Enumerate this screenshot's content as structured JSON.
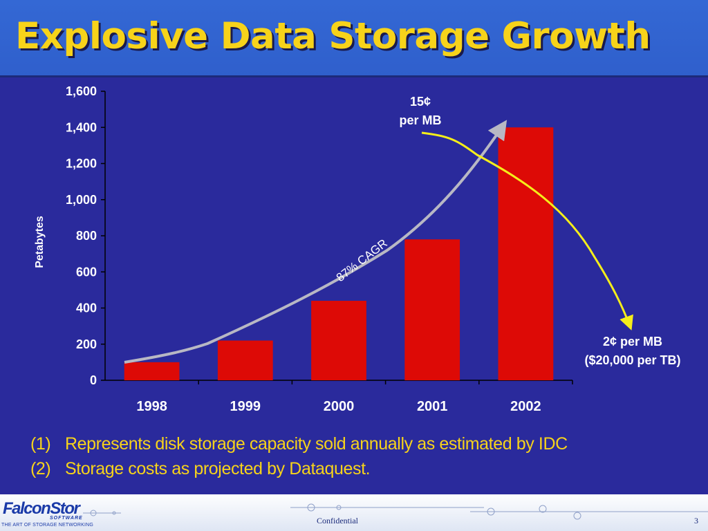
{
  "title": "Explosive Data Storage Growth",
  "chart_data": {
    "type": "bar",
    "categories": [
      "1998",
      "1999",
      "2000",
      "2001",
      "2002"
    ],
    "values": [
      100,
      220,
      440,
      780,
      1400
    ],
    "ylabel": "Petabytes",
    "xlabel": "",
    "ylim": [
      0,
      1600
    ],
    "yticks": [
      0,
      200,
      400,
      600,
      800,
      1000,
      1200,
      1400,
      1600
    ],
    "ytick_labels": [
      "0",
      "200",
      "400",
      "600",
      "800",
      "1,000",
      "1,200",
      "1,400",
      "1,600"
    ],
    "bar_color": "#dd0a06",
    "grid": false,
    "annotations": {
      "cagr_label": "87% CAGR",
      "cost_start_line1": "15¢",
      "cost_start_line2": "per MB",
      "cost_end_line1": "2¢ per MB",
      "cost_end_line2": "($20,000 per TB)"
    },
    "curve_color": "#b8b8c4",
    "cost_line_color": "#f5ee1a"
  },
  "footnotes": [
    {
      "num": "(1)",
      "text": "Represents disk storage capacity sold annually as estimated by IDC"
    },
    {
      "num": "(2)",
      "text": "Storage costs as projected by Dataquest."
    }
  ],
  "footer": {
    "logo_text": "FalconStor",
    "logo_sub": "SOFTWARE",
    "logo_tagline": "THE ART OF STORAGE NETWORKING",
    "confidential": "Confidential",
    "page_number": "3"
  }
}
